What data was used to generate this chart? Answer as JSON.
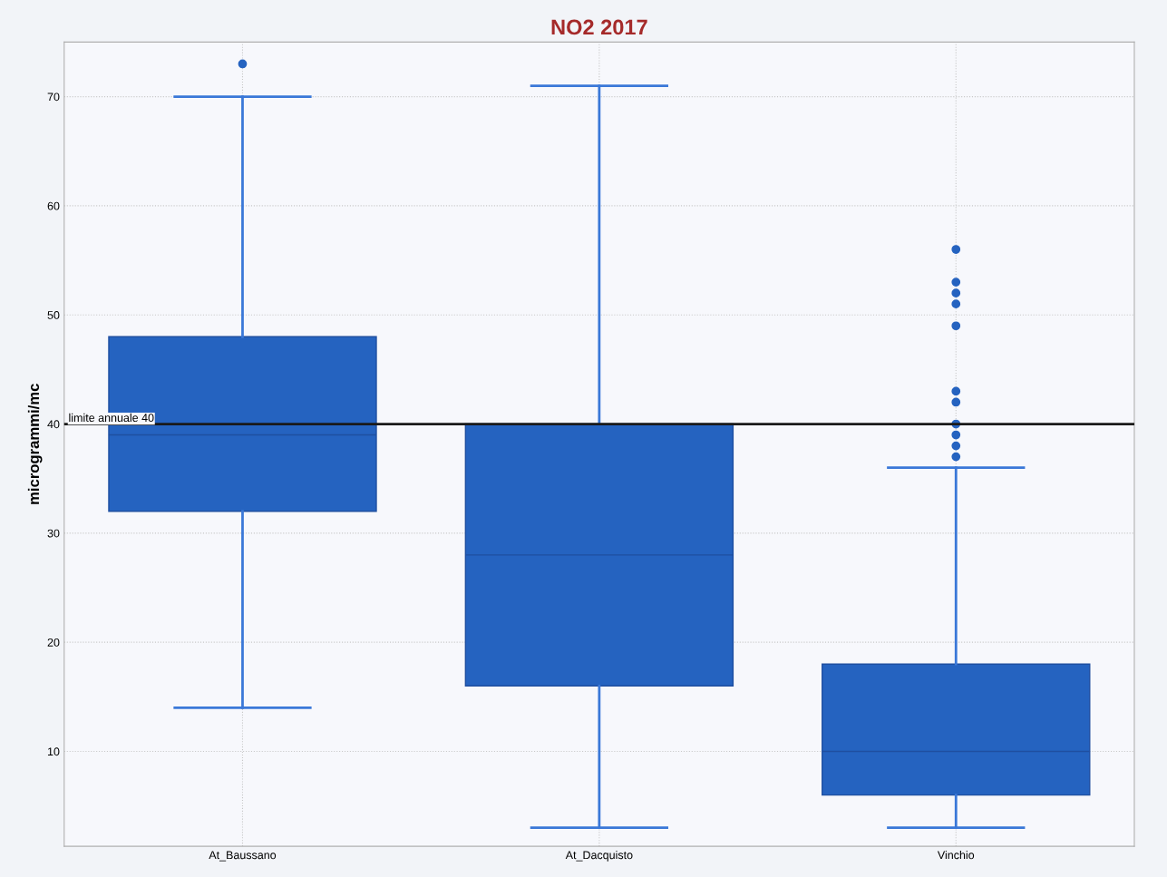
{
  "chart_data": {
    "type": "box",
    "title": "NO2 2017",
    "ylabel": "microgrammi/mc",
    "categories": [
      "At_Baussano",
      "At_Dacquisto",
      "Vinchio"
    ],
    "boxes": [
      {
        "low": 14,
        "q1": 32,
        "median": 39,
        "q3": 48,
        "high": 70,
        "outliers": [
          73
        ]
      },
      {
        "low": 3,
        "q1": 16,
        "median": 28,
        "q3": 40,
        "high": 71
      },
      {
        "low": 3,
        "q1": 6,
        "median": 10,
        "q3": 18,
        "high": 36,
        "outliers": [
          37,
          38,
          39,
          40,
          42,
          43,
          49,
          51,
          52,
          53,
          56
        ]
      }
    ],
    "color": "#2563c0",
    "ylim": [
      1.3,
      75
    ],
    "yticks": [
      10,
      20,
      30,
      40,
      50,
      60,
      70
    ],
    "ref_lines": [
      {
        "axis": "y",
        "value": 40,
        "label": "limite annuale 40",
        "color": "#1a1a1a"
      }
    ],
    "grid": true
  }
}
